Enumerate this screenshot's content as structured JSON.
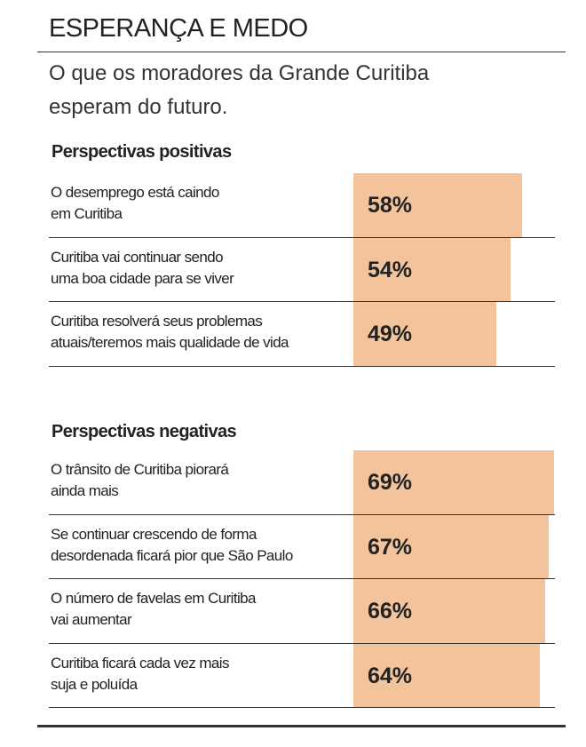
{
  "header": {
    "title": "ESPERANÇA E MEDO",
    "subtitle": "O que os moradores da Grande Curitiba\nesperam do futuro."
  },
  "chart_data": [
    {
      "type": "bar",
      "title": "Perspectivas positivas",
      "color": "#f3c49b",
      "categories": [
        "O desemprego está caindo\nem Curitiba",
        "Curitiba vai continuar sendo\numa boa cidade para se viver",
        "Curitiba resolverá seus problemas\natuais/teremos mais qualidade de vida"
      ],
      "values": [
        58,
        54,
        49
      ],
      "value_labels": [
        "58%",
        "54%",
        "49%"
      ]
    },
    {
      "type": "bar",
      "title": "Perspectivas negativas",
      "color": "#f3c49b",
      "categories": [
        "O trânsito de Curitiba piorará\nainda mais",
        "Se continuar crescendo de forma\ndesordenada ficará pior que São Paulo",
        "O número de favelas em Curitiba\nvai aumentar",
        "Curitiba ficará cada vez mais\nsuja e poluída"
      ],
      "values": [
        69,
        67,
        66,
        64
      ],
      "value_labels": [
        "69%",
        "67%",
        "66%",
        "64%"
      ]
    }
  ]
}
